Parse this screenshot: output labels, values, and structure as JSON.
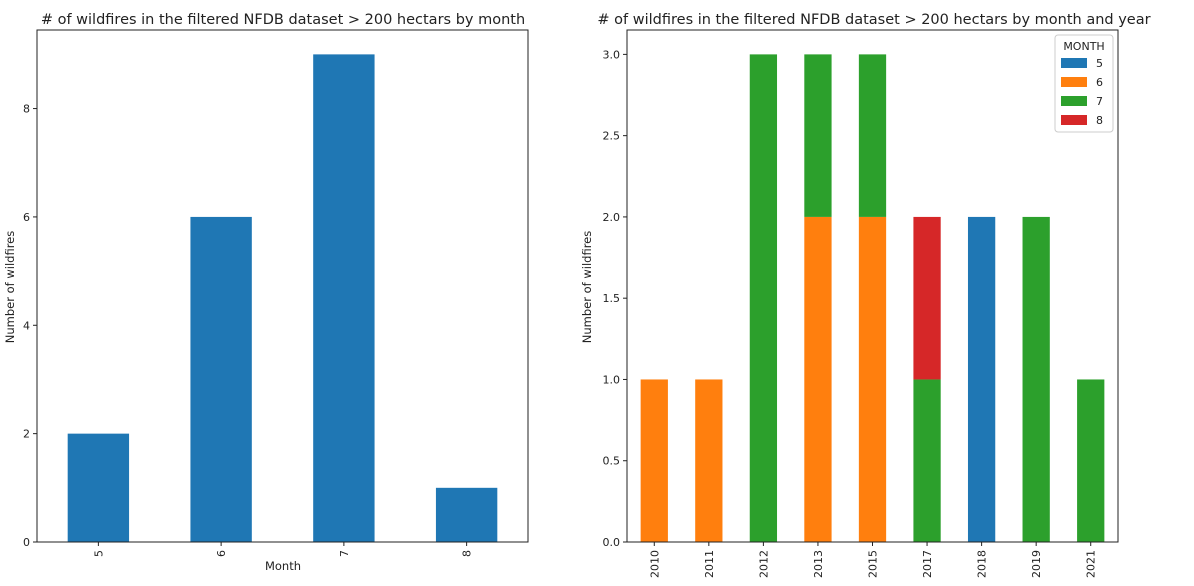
{
  "chart_data": [
    {
      "type": "bar",
      "title": "# of wildfires in the filtered NFDB dataset > 200 hectars by month",
      "xlabel": "Month",
      "ylabel": "Number of wildfires",
      "categories": [
        "5",
        "6",
        "7",
        "8"
      ],
      "values": [
        2,
        6,
        9,
        1
      ],
      "color": "#1f77b4",
      "ylim": [
        0,
        9.45
      ],
      "yticks": [
        0,
        2,
        4,
        6,
        8
      ],
      "ytick_labels": [
        "0",
        "2",
        "4",
        "6",
        "8"
      ],
      "grid": false
    },
    {
      "type": "bar",
      "stacked": true,
      "title": "# of wildfires in the filtered NFDB dataset > 200 hectars by month and year",
      "xlabel": "",
      "ylabel": "Number of wildfires",
      "categories": [
        "2010",
        "2011",
        "2012",
        "2013",
        "2015",
        "2017",
        "2018",
        "2019",
        "2021"
      ],
      "series": [
        {
          "name": "5",
          "color": "#1f77b4",
          "values": [
            0,
            0,
            0,
            0,
            0,
            0,
            2,
            0,
            0
          ]
        },
        {
          "name": "6",
          "color": "#ff7f0e",
          "values": [
            1,
            1,
            0,
            2,
            2,
            0,
            0,
            0,
            0
          ]
        },
        {
          "name": "7",
          "color": "#2ca02c",
          "values": [
            0,
            0,
            3,
            1,
            1,
            1,
            0,
            2,
            1
          ]
        },
        {
          "name": "8",
          "color": "#d62728",
          "values": [
            0,
            0,
            0,
            0,
            0,
            1,
            0,
            0,
            0
          ]
        }
      ],
      "legend_title": "MONTH",
      "legend_position": "top-right",
      "ylim": [
        0,
        3.15
      ],
      "yticks": [
        0,
        0.5,
        1,
        1.5,
        2,
        2.5,
        3
      ],
      "ytick_labels": [
        "0.0",
        "0.5",
        "1.0",
        "1.5",
        "2.0",
        "2.5",
        "3.0"
      ],
      "grid": false
    }
  ]
}
